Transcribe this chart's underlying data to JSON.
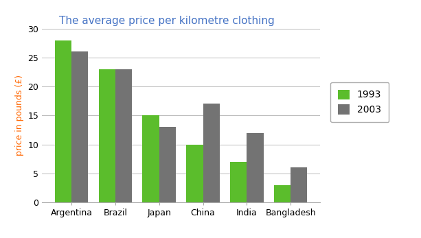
{
  "title": "The average price per kilometre clothing",
  "title_color": "#4472C4",
  "ylabel": "price in pounds (£)",
  "ylabel_color": "#FF6600",
  "categories": [
    "Argentina",
    "Brazil",
    "Japan",
    "China",
    "India",
    "Bangladesh"
  ],
  "values_1993": [
    28,
    23,
    15,
    10,
    7,
    3
  ],
  "values_2003": [
    26,
    23,
    13,
    17,
    12,
    6
  ],
  "color_1993": "#5BBD2C",
  "color_2003": "#737373",
  "ylim": [
    0,
    30
  ],
  "yticks": [
    0,
    5,
    10,
    15,
    20,
    25,
    30
  ],
  "legend_labels": [
    "1993",
    "2003"
  ],
  "bar_width": 0.38,
  "background_color": "#FFFFFF",
  "grid_color": "#BBBBBB",
  "title_fontsize": 11,
  "label_fontsize": 9,
  "tick_fontsize": 9,
  "legend_fontsize": 10
}
